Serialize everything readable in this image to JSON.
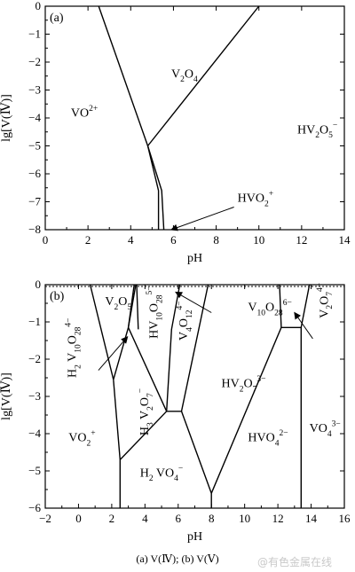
{
  "caption": "(a) V(Ⅳ); (b) V(Ⅴ)",
  "watermark": "@有色金属在线",
  "chart_data": [
    {
      "type": "line",
      "panel_label": "(a)",
      "xlabel": "pH",
      "ylabel": "lg[V(Ⅳ)]",
      "xlim": [
        0,
        14
      ],
      "ylim": [
        -8,
        0
      ],
      "xticks": [
        0,
        2,
        4,
        6,
        8,
        10,
        12,
        14
      ],
      "yticks": [
        0,
        -1,
        -2,
        -3,
        -4,
        -5,
        -6,
        -7,
        -8
      ],
      "grid": false,
      "boundaries": [
        {
          "name": "VO2+/V2O4",
          "points": [
            [
              2.5,
              0
            ],
            [
              4.8,
              -5.0
            ]
          ]
        },
        {
          "name": "V2O4/HV2O5-",
          "points": [
            [
              4.8,
              -5.0
            ],
            [
              10.0,
              0
            ]
          ]
        },
        {
          "name": "VO2+/HVO2+",
          "points": [
            [
              4.8,
              -5.0
            ],
            [
              5.3,
              -6.6
            ],
            [
              5.3,
              -8.0
            ]
          ]
        },
        {
          "name": "HVO2+/HV2O5-",
          "points": [
            [
              4.8,
              -5.0
            ],
            [
              5.45,
              -6.6
            ],
            [
              5.55,
              -8.0
            ]
          ]
        }
      ],
      "region_labels": [
        {
          "parts": [
            [
              "VO",
              "n"
            ],
            [
              "2+",
              "sup"
            ]
          ],
          "x": 1.2,
          "y": -3.95
        },
        {
          "parts": [
            [
              "V",
              "n"
            ],
            [
              "2",
              "sub"
            ],
            [
              "O",
              "n"
            ],
            [
              "4",
              "sub"
            ]
          ],
          "x": 5.9,
          "y": -2.55
        },
        {
          "parts": [
            [
              "HV",
              "n"
            ],
            [
              "2",
              "sub"
            ],
            [
              "O",
              "n"
            ],
            [
              "5",
              "sub"
            ],
            [
              "−",
              "sup"
            ]
          ],
          "x": 11.8,
          "y": -4.55
        }
      ],
      "annotations": [
        {
          "parts": [
            [
              "HVO",
              "n"
            ],
            [
              "2",
              "sub"
            ],
            [
              "+",
              "sup"
            ]
          ],
          "x": 9.0,
          "y": -7.0,
          "arrow_to": [
            5.9,
            -8.0
          ]
        }
      ]
    },
    {
      "type": "line",
      "panel_label": "(b)",
      "xlabel": "pH",
      "ylabel": "lg[V(Ⅳ)]",
      "xlim": [
        -2,
        16
      ],
      "ylim": [
        -6,
        0
      ],
      "xticks": [
        -2,
        0,
        2,
        4,
        6,
        8,
        10,
        12,
        14,
        16
      ],
      "yticks": [
        0,
        -1,
        -2,
        -3,
        -4,
        -5,
        -6
      ],
      "grid": false,
      "boundaries": [
        {
          "name": "b1",
          "points": [
            [
              0.7,
              0
            ],
            [
              2.1,
              -2.55
            ]
          ]
        },
        {
          "name": "b2",
          "points": [
            [
              2.1,
              -2.55
            ],
            [
              2.5,
              -4.7
            ],
            [
              2.5,
              -6.0
            ]
          ]
        },
        {
          "name": "b3",
          "points": [
            [
              2.1,
              -2.55
            ],
            [
              3.0,
              -1.15
            ],
            [
              3.35,
              0
            ]
          ]
        },
        {
          "name": "b4",
          "points": [
            [
              3.0,
              -1.15
            ],
            [
              3.45,
              0
            ]
          ]
        },
        {
          "name": "b5",
          "points": [
            [
              3.0,
              -1.15
            ],
            [
              5.3,
              -3.4
            ]
          ]
        },
        {
          "name": "b6",
          "points": [
            [
              2.5,
              -4.7
            ],
            [
              5.3,
              -3.4
            ]
          ]
        },
        {
          "name": "b7",
          "points": [
            [
              3.5,
              0
            ],
            [
              3.6,
              -1.2
            ]
          ]
        },
        {
          "name": "b8",
          "points": [
            [
              5.3,
              -3.4
            ],
            [
              5.6,
              -1.2
            ],
            [
              6.1,
              0
            ]
          ]
        },
        {
          "name": "b9",
          "points": [
            [
              5.3,
              -3.4
            ],
            [
              6.2,
              -3.4
            ],
            [
              7.8,
              0
            ]
          ]
        },
        {
          "name": "b10",
          "points": [
            [
              6.2,
              -3.4
            ],
            [
              8.0,
              -5.6
            ],
            [
              8.0,
              -6.0
            ]
          ]
        },
        {
          "name": "b11",
          "points": [
            [
              8.0,
              -5.6
            ],
            [
              12.2,
              -1.15
            ],
            [
              13.4,
              -1.15
            ],
            [
              13.4,
              -6.0
            ]
          ]
        },
        {
          "name": "b12",
          "points": [
            [
              12.2,
              -1.15
            ],
            [
              12.1,
              0
            ]
          ]
        },
        {
          "name": "b13",
          "points": [
            [
              13.4,
              -1.15
            ],
            [
              13.9,
              0
            ]
          ]
        }
      ],
      "region_labels": [
        {
          "parts": [
            [
              "V",
              "n"
            ],
            [
              "2",
              "sub"
            ],
            [
              "O",
              "n"
            ],
            [
              "5",
              "sub"
            ]
          ],
          "x": 1.6,
          "y": -0.55
        },
        {
          "parts": [
            [
              "VO",
              "n"
            ],
            [
              "2",
              "sub"
            ],
            [
              "+",
              "sup"
            ]
          ],
          "x": -0.6,
          "y": -4.2
        },
        {
          "parts": [
            [
              "H",
              "n"
            ],
            [
              "2",
              "sub"
            ],
            [
              " VO",
              "n"
            ],
            [
              "4",
              "sub"
            ],
            [
              "−",
              "sup"
            ]
          ],
          "x": 3.7,
          "y": -5.15
        },
        {
          "parts": [
            [
              "HVO",
              "n"
            ],
            [
              "4",
              "sub"
            ],
            [
              "2−",
              "sup"
            ]
          ],
          "x": 10.2,
          "y": -4.2
        },
        {
          "parts": [
            [
              "VO",
              "n"
            ],
            [
              "4",
              "sub"
            ],
            [
              "3−",
              "sup"
            ]
          ],
          "x": 13.9,
          "y": -3.95
        },
        {
          "parts": [
            [
              "HV",
              "n"
            ],
            [
              "2",
              "sub"
            ],
            [
              "O",
              "n"
            ],
            [
              "7",
              "sub"
            ],
            [
              "3−",
              "sup"
            ]
          ],
          "x": 8.6,
          "y": -2.75
        },
        {
          "parts": [
            [
              "H",
              "n"
            ],
            [
              "3",
              "sub"
            ],
            [
              " V",
              "n"
            ],
            [
              "2",
              "sub"
            ],
            [
              "O",
              "n"
            ],
            [
              "7",
              "sub"
            ],
            [
              "−",
              "sup"
            ]
          ],
          "x": 4.2,
          "y": -4.05,
          "rotate": -90
        },
        {
          "parts": [
            [
              "H",
              "n"
            ],
            [
              "2",
              "sub"
            ],
            [
              " V",
              "n"
            ],
            [
              "10",
              "sub"
            ],
            [
              "O",
              "n"
            ],
            [
              "28",
              "sub"
            ],
            [
              "4−",
              "sup"
            ]
          ],
          "x": -0.15,
          "y": -2.5,
          "rotate": -90
        },
        {
          "parts": [
            [
              "HV",
              "n"
            ],
            [
              "10",
              "sub"
            ],
            [
              "O",
              "n"
            ],
            [
              "28",
              "sub"
            ],
            [
              "5−",
              "sup"
            ]
          ],
          "x": 4.75,
          "y": -1.45,
          "rotate": -90
        },
        {
          "parts": [
            [
              "V",
              "n"
            ],
            [
              "4",
              "sub"
            ],
            [
              "O",
              "n"
            ],
            [
              "12",
              "sub"
            ],
            [
              "4−",
              "sup"
            ]
          ],
          "x": 6.55,
          "y": -1.5,
          "rotate": -90
        },
        {
          "parts": [
            [
              "V",
              "n"
            ],
            [
              "2",
              "sub"
            ],
            [
              "O",
              "n"
            ],
            [
              "7",
              "sub"
            ],
            [
              "4−",
              "sup"
            ]
          ],
          "x": 15.0,
          "y": -0.9,
          "rotate": -90
        }
      ],
      "annotations": [
        {
          "parts": [
            [
              "V",
              "n"
            ],
            [
              "10",
              "sub"
            ],
            [
              "O",
              "n"
            ],
            [
              "28",
              "sub"
            ],
            [
              "6−",
              "sup"
            ]
          ],
          "x": 10.2,
          "y": -0.7,
          "arrow_to": [
            5.85,
            -0.2
          ],
          "arrow_from": [
            8.0,
            -0.75
          ]
        },
        {
          "arrow_to": [
            2.95,
            -1.4
          ],
          "arrow_from": [
            1.2,
            -2.3
          ]
        },
        {
          "arrow_to": [
            13.0,
            -0.75
          ],
          "arrow_from": [
            14.1,
            -1.45
          ]
        }
      ]
    }
  ]
}
